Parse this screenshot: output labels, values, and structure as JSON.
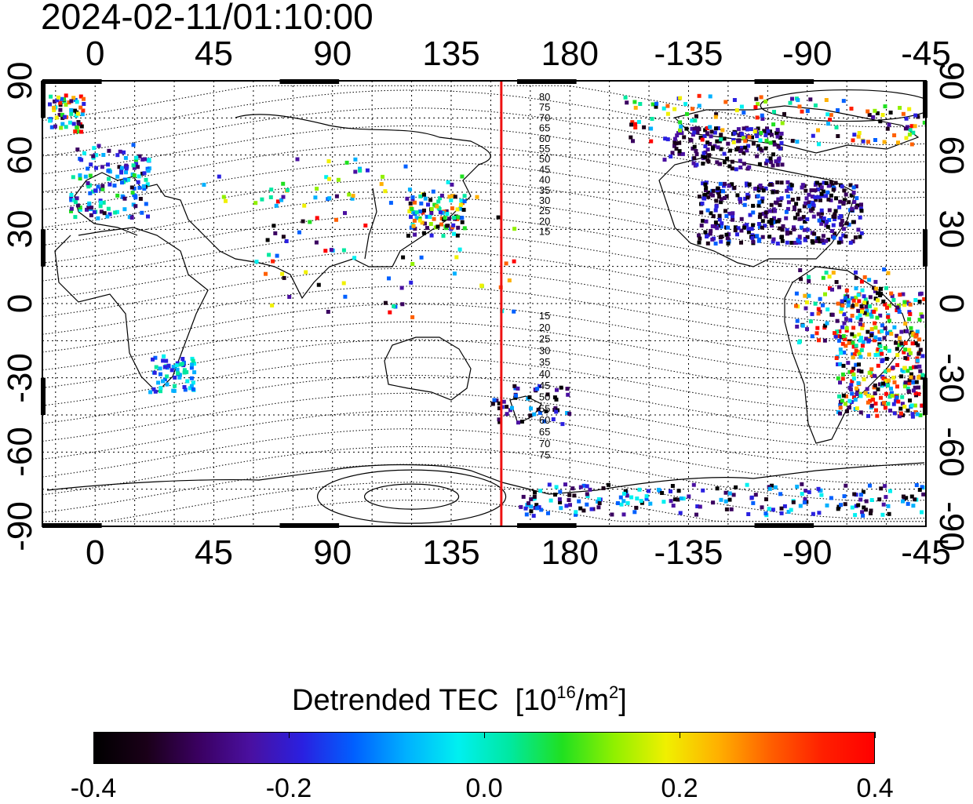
{
  "title": "2024-02-11/01:10:00",
  "map": {
    "x_ticks_top": [
      "0",
      "45",
      "90",
      "135",
      "180",
      "-135",
      "-90",
      "-45"
    ],
    "x_ticks_bottom": [
      "0",
      "45",
      "90",
      "135",
      "180",
      "-135",
      "-90",
      "-45"
    ],
    "y_ticks_left": [
      "90",
      "60",
      "30",
      "0",
      "-30",
      "-60",
      "-90"
    ],
    "y_ticks_right": [
      "90",
      "60",
      "30",
      "0",
      "-30",
      "-60",
      "-90"
    ],
    "lon_range": [
      -20,
      315
    ],
    "lat_range": [
      -90,
      90
    ],
    "terminator_longitude": 154,
    "terminator_color": "#ee1111",
    "terminator_labels_north": [
      "80",
      "75",
      "70",
      "65",
      "60",
      "55",
      "50",
      "45",
      "40",
      "35",
      "30",
      "25",
      "20",
      "15"
    ],
    "terminator_labels_south": [
      "15",
      "20",
      "25",
      "30",
      "35",
      "40",
      "45",
      "50",
      "55",
      "60",
      "65",
      "70",
      "75"
    ]
  },
  "colorbar": {
    "label": "Detrended TEC",
    "unit_base": "10",
    "unit_exp": "16",
    "unit_rest": "/m",
    "unit_exp2": "2",
    "ticks": [
      "-0.4",
      "-0.2",
      "0.0",
      "0.2",
      "0.4"
    ],
    "range": [
      -0.4,
      0.4
    ],
    "colormap": [
      "#000000",
      "#1a0018",
      "#3a0060",
      "#4a10a0",
      "#2a20e0",
      "#0060ff",
      "#00b0ff",
      "#00f0f0",
      "#00e8a0",
      "#20e020",
      "#90f000",
      "#f0f000",
      "#ffb000",
      "#ff6000",
      "#ff2000",
      "#ff0000"
    ]
  }
}
